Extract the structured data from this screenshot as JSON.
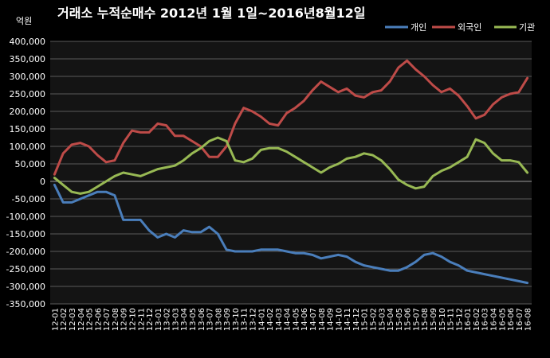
{
  "chart_data": {
    "type": "line",
    "title": "거래소 누적순매수 2012년 1월 1일~2016년8월12일",
    "unit_label": "억원",
    "ylim": [
      -350000,
      400000
    ],
    "y_ticks": [
      "-350,000",
      "-300,000",
      "-250,000",
      "-200,000",
      "-150,000",
      "-100,000",
      "-50,000",
      "0",
      "50,000",
      "100,000",
      "150,000",
      "200,000",
      "250,000",
      "300,000",
      "350,000",
      "400,000"
    ],
    "y_tick_values": [
      -350000,
      -300000,
      -250000,
      -200000,
      -150000,
      -100000,
      -50000,
      0,
      50000,
      100000,
      150000,
      200000,
      250000,
      300000,
      350000,
      400000
    ],
    "categories": [
      "12-01",
      "12-02",
      "12-03",
      "12-04",
      "12-05",
      "12-06",
      "12-07",
      "12-08",
      "12-09",
      "12-10",
      "12-11",
      "12-12",
      "13-01",
      "13-02",
      "13-03",
      "13-04",
      "13-05",
      "13-06",
      "13-07",
      "13-08",
      "13-09",
      "13-10",
      "13-11",
      "13-12",
      "14-01",
      "14-02",
      "14-03",
      "14-04",
      "14-05",
      "14-06",
      "14-07",
      "14-08",
      "14-09",
      "14-10",
      "14-11",
      "14-12",
      "15-01",
      "15-02",
      "15-03",
      "15-04",
      "15-05",
      "15-06",
      "15-07",
      "15-08",
      "15-09",
      "15-10",
      "15-11",
      "15-12",
      "16-01",
      "16-02",
      "16-03",
      "16-04",
      "16-05",
      "16-06",
      "16-07",
      "16-08"
    ],
    "grid": true,
    "legend_position": "top-right",
    "series": [
      {
        "name": "개인",
        "color": "#4a7ebb",
        "values": [
          -10000,
          -60000,
          -60000,
          -50000,
          -40000,
          -30000,
          -30000,
          -40000,
          -110000,
          -110000,
          -110000,
          -140000,
          -160000,
          -150000,
          -160000,
          -140000,
          -145000,
          -145000,
          -130000,
          -150000,
          -195000,
          -200000,
          -200000,
          -200000,
          -195000,
          -195000,
          -195000,
          -200000,
          -205000,
          -205000,
          -210000,
          -220000,
          -215000,
          -210000,
          -215000,
          -230000,
          -240000,
          -245000,
          -250000,
          -255000,
          -255000,
          -245000,
          -230000,
          -210000,
          -205000,
          -215000,
          -230000,
          -240000,
          -255000,
          -260000,
          -265000,
          -270000,
          -275000,
          -280000,
          -285000,
          -290000
        ]
      },
      {
        "name": "외국인",
        "color": "#be4b48",
        "values": [
          20000,
          80000,
          105000,
          110000,
          100000,
          75000,
          55000,
          60000,
          110000,
          145000,
          140000,
          140000,
          165000,
          160000,
          130000,
          130000,
          115000,
          100000,
          70000,
          70000,
          100000,
          165000,
          210000,
          200000,
          185000,
          165000,
          160000,
          195000,
          210000,
          230000,
          260000,
          285000,
          270000,
          255000,
          265000,
          245000,
          240000,
          255000,
          260000,
          285000,
          325000,
          345000,
          320000,
          300000,
          275000,
          255000,
          265000,
          245000,
          215000,
          180000,
          190000,
          220000,
          240000,
          250000,
          255000,
          295000
        ]
      },
      {
        "name": "기관",
        "color": "#98b954",
        "values": [
          10000,
          -10000,
          -30000,
          -35000,
          -30000,
          -15000,
          0,
          15000,
          25000,
          20000,
          15000,
          25000,
          35000,
          40000,
          45000,
          60000,
          80000,
          95000,
          115000,
          125000,
          115000,
          60000,
          55000,
          65000,
          90000,
          95000,
          95000,
          85000,
          70000,
          55000,
          40000,
          25000,
          40000,
          50000,
          65000,
          70000,
          80000,
          75000,
          60000,
          35000,
          5000,
          -10000,
          -20000,
          -15000,
          15000,
          30000,
          40000,
          55000,
          70000,
          120000,
          110000,
          80000,
          60000,
          60000,
          55000,
          25000
        ]
      }
    ]
  }
}
